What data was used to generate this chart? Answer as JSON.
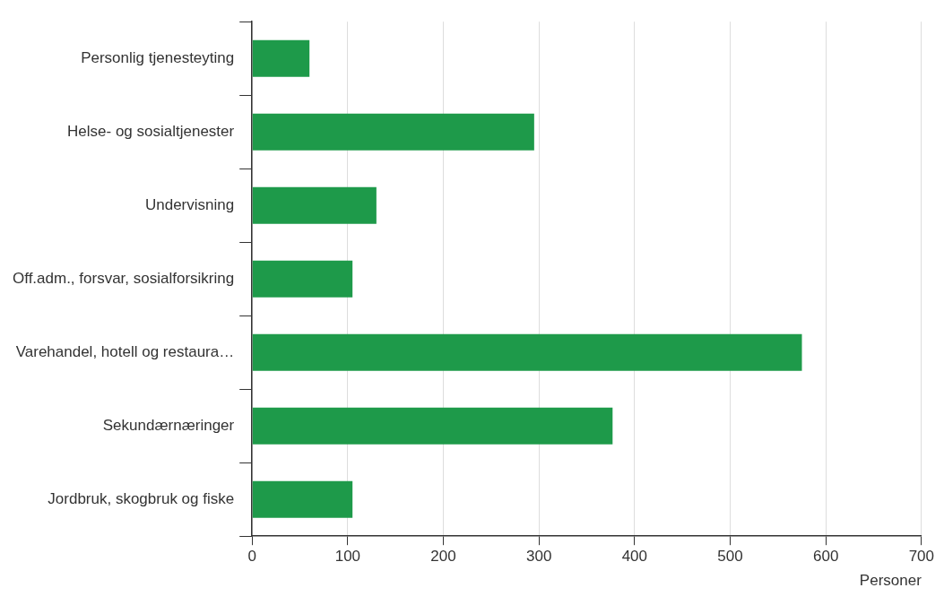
{
  "chart_data": {
    "type": "bar",
    "orientation": "horizontal",
    "xlabel": "Personer",
    "categories": [
      "Personlig tjenesteyting",
      "Helse- og sosialtjenester",
      "Undervisning",
      "Off.adm., forsvar, sosialforsikring",
      "Varehandel, hotell og restaura…",
      "Sekundærnæringer",
      "Jordbruk, skogbruk og fiske"
    ],
    "values": [
      60,
      295,
      130,
      105,
      575,
      377,
      105
    ],
    "color": "#1e9a4a",
    "xlim": [
      0,
      700
    ],
    "xticks": [
      0,
      100,
      200,
      300,
      400,
      500,
      600,
      700
    ],
    "grid": "x",
    "legend": false
  }
}
